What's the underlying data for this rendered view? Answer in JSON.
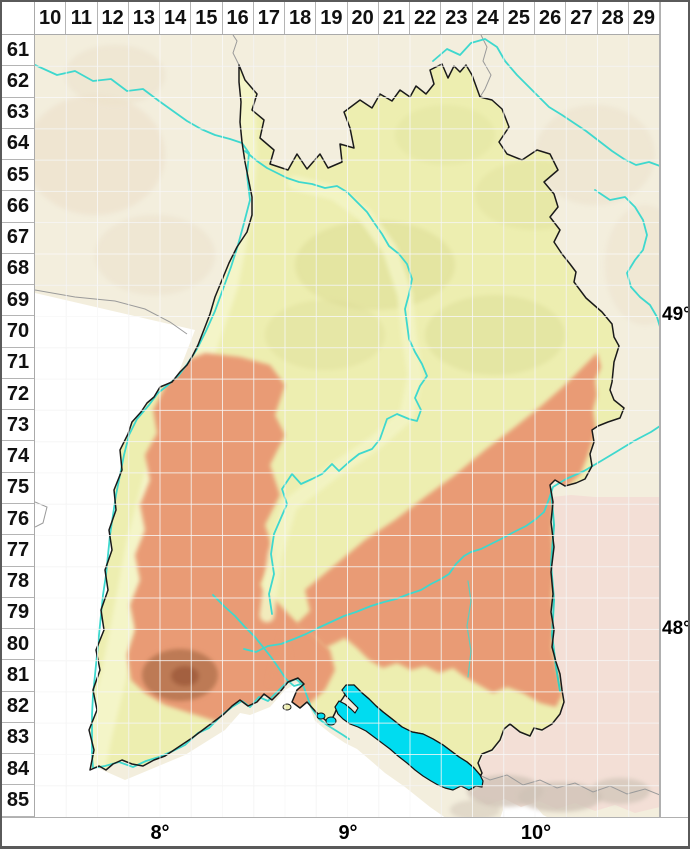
{
  "grid": {
    "column_labels": [
      "10",
      "11",
      "12",
      "13",
      "14",
      "15",
      "16",
      "17",
      "18",
      "19",
      "20",
      "21",
      "22",
      "23",
      "24",
      "25",
      "26",
      "27",
      "28",
      "29"
    ],
    "row_labels": [
      "61",
      "62",
      "63",
      "64",
      "65",
      "66",
      "67",
      "68",
      "69",
      "70",
      "71",
      "72",
      "73",
      "74",
      "75",
      "76",
      "77",
      "78",
      "79",
      "80",
      "81",
      "82",
      "83",
      "84",
      "85"
    ]
  },
  "axis_labels": {
    "latitude": [
      {
        "text": "49°"
      },
      {
        "text": "48°"
      }
    ],
    "longitude": [
      {
        "text": "8°"
      },
      {
        "text": "9°"
      },
      {
        "text": "10°"
      }
    ]
  },
  "map": {
    "colors": {
      "lowland_yellow": "#edeeb0",
      "valley_light": "#f4f5c8",
      "upland_orange": "#e99b74",
      "highland_brown": "#b5744f",
      "peak_dark": "#9d5a3b",
      "olive_hills": "#dcdd96",
      "river_cyan": "#3ed8ce",
      "lake_cyan": "#00dcf0",
      "outside_cream": "#f3eedd",
      "foreign_white": "#ffffff",
      "bavaria_pink": "#f3dfd6",
      "alps_gray": "#cfc3b6",
      "state_border": "#1a1a1a",
      "foreign_border": "#9a9a9a"
    }
  }
}
